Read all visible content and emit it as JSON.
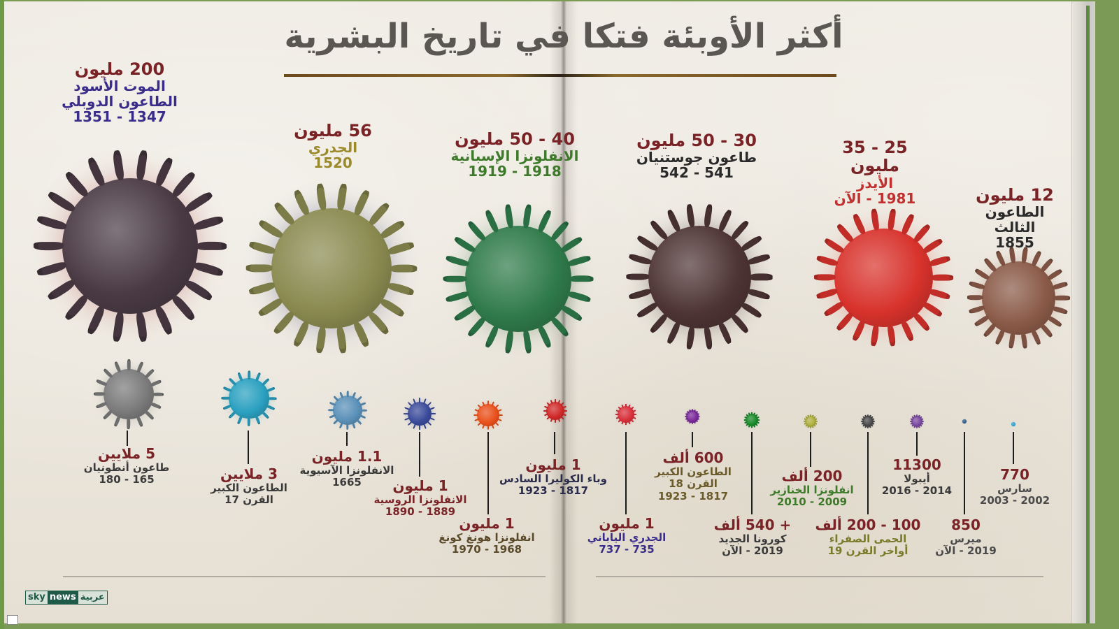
{
  "title": "أكثر الأوبئة فتكا في تاريخ البشرية",
  "branding": {
    "logo_part1": "sky",
    "logo_part2": "news",
    "logo_part3": "عربية"
  },
  "colors": {
    "number": "#7a2326",
    "title": "#5a5652",
    "rule": "#6b4a1e",
    "page": "#ece7dd",
    "frame_green": "#6e9a48"
  },
  "large_pandemics": [
    {
      "deaths": "200 مليون",
      "name": "الموت الأسود",
      "name2": "الطاعون الدوبلي",
      "years": "1347 - 1351",
      "name_color": "#3a2c8a",
      "virus_color": "#4a3a44",
      "accent_color": "#b03a3a"
    },
    {
      "deaths": "56 مليون",
      "name": "الجدري",
      "years": "1520",
      "name_color": "#9a8a2a",
      "virus_color": "#8a8a50",
      "accent_color": "#3a3a70"
    },
    {
      "deaths": "40 - 50 مليون",
      "name": "الانفلونزا الإسبانية",
      "years": "1918 - 1919",
      "name_color": "#3d7a2a",
      "virus_color": "#2f7a4a",
      "accent_color": "#2a6a3a"
    },
    {
      "deaths": "30 - 50 مليون",
      "name": "طاعون جوستنيان",
      "years": "541 - 542",
      "name_color": "#2a2a2a",
      "virus_color": "#4e3434",
      "accent_color": "#2a1a1a"
    },
    {
      "deaths": "25 - 35 مليون",
      "name": "الأيدز",
      "years": "1981 - الآن",
      "name_color": "#c0302e",
      "virus_color": "#d8322c",
      "accent_color": "#e84a40"
    },
    {
      "deaths": "12 مليون",
      "name": "الطاعون الثالث",
      "years": "1855",
      "name_color": "#2a2a2a",
      "virus_color": "#8a5a48",
      "accent_color": "#a0604a"
    }
  ],
  "small_pandemics": [
    {
      "deaths": "5 ملايين",
      "name": "طاعون أنطونيان",
      "years": "165 - 180",
      "name_color": "#3a3a3a",
      "virus_color": "#7a7a7a"
    },
    {
      "deaths": "3 ملايين",
      "name": "الطاعون الكبير",
      "years": "القرن 17",
      "name_color": "#3a3a3a",
      "virus_color": "#2aa0c0"
    },
    {
      "deaths": "1.1 مليون",
      "name": "الانفلونزا الآسيوية",
      "years": "1665",
      "name_color": "#3a3a3a",
      "virus_color": "#5a90b8"
    },
    {
      "deaths": "1 مليون",
      "name": "الانفلونزا الروسية",
      "years": "1889 - 1890",
      "name_color": "#7a2326",
      "virus_color": "#3a4a9a"
    },
    {
      "deaths": "1 مليون",
      "name": "انفلونزا هونغ كونغ",
      "years": "1968 - 1970",
      "name_color": "#5a4a2a",
      "virus_color": "#e8501a"
    },
    {
      "deaths": "1 مليون",
      "name": "وباء الكوليرا السادس",
      "years": "1817 - 1923",
      "name_color": "#2a2a4a",
      "virus_color": "#d02828"
    },
    {
      "deaths": "1 مليون",
      "name": "الجدري الياباني",
      "years": "735 - 737",
      "name_color": "#3a2c8a",
      "virus_color": "#d8303a"
    },
    {
      "deaths": "600 ألف",
      "name": "الطاعون الكبير",
      "name2": "القرن 18",
      "years": "1817 - 1923",
      "name_color": "#6a5a2a",
      "virus_color": "#7a2a9a"
    },
    {
      "deaths": "+ 540 ألف",
      "name": "كورونا الجديد",
      "years": "2019 - الآن",
      "name_color": "#3a3a3a",
      "virus_color": "#1a8a2a"
    },
    {
      "deaths": "200 ألف",
      "name": "انفلونزا الخنازير",
      "years": "2009 - 2010",
      "name_color": "#3d7a2a",
      "virus_color": "#b0b040"
    },
    {
      "deaths": "100 - 200 ألف",
      "name": "الحمى الصفراء",
      "years": "أواخر القرن 19",
      "name_color": "#7a7a2a",
      "virus_color": "#4a4a4a"
    },
    {
      "deaths": "11300",
      "name": "أيبولا",
      "years": "2014 - 2016",
      "name_color": "#3a3a3a",
      "virus_color": "#7a4aa0"
    },
    {
      "deaths": "850",
      "name": "ميرس",
      "years": "2019 - الآن",
      "name_color": "#4a4a4a",
      "virus_color": "#2a5a8a"
    },
    {
      "deaths": "770",
      "name": "سارس",
      "years": "2002 - 2003",
      "name_color": "#4a4a4a",
      "virus_color": "#2aa0d0"
    }
  ]
}
